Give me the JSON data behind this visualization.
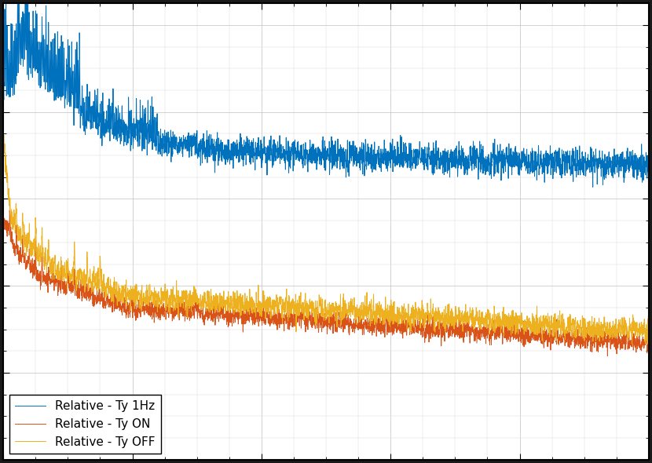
{
  "line1_label": "Relative - Ty 1Hz",
  "line2_label": "Relative - Ty ON",
  "line3_label": "Relative - Ty OFF",
  "line1_color": "#0072BD",
  "line2_color": "#D95319",
  "line3_color": "#EDB120",
  "background_color": "#ffffff",
  "grid_color": "#c0c0c0",
  "xlim": [
    0,
    500
  ],
  "legend_loc": "lower left",
  "figsize": [
    8.3,
    5.9
  ],
  "dpi": 100
}
